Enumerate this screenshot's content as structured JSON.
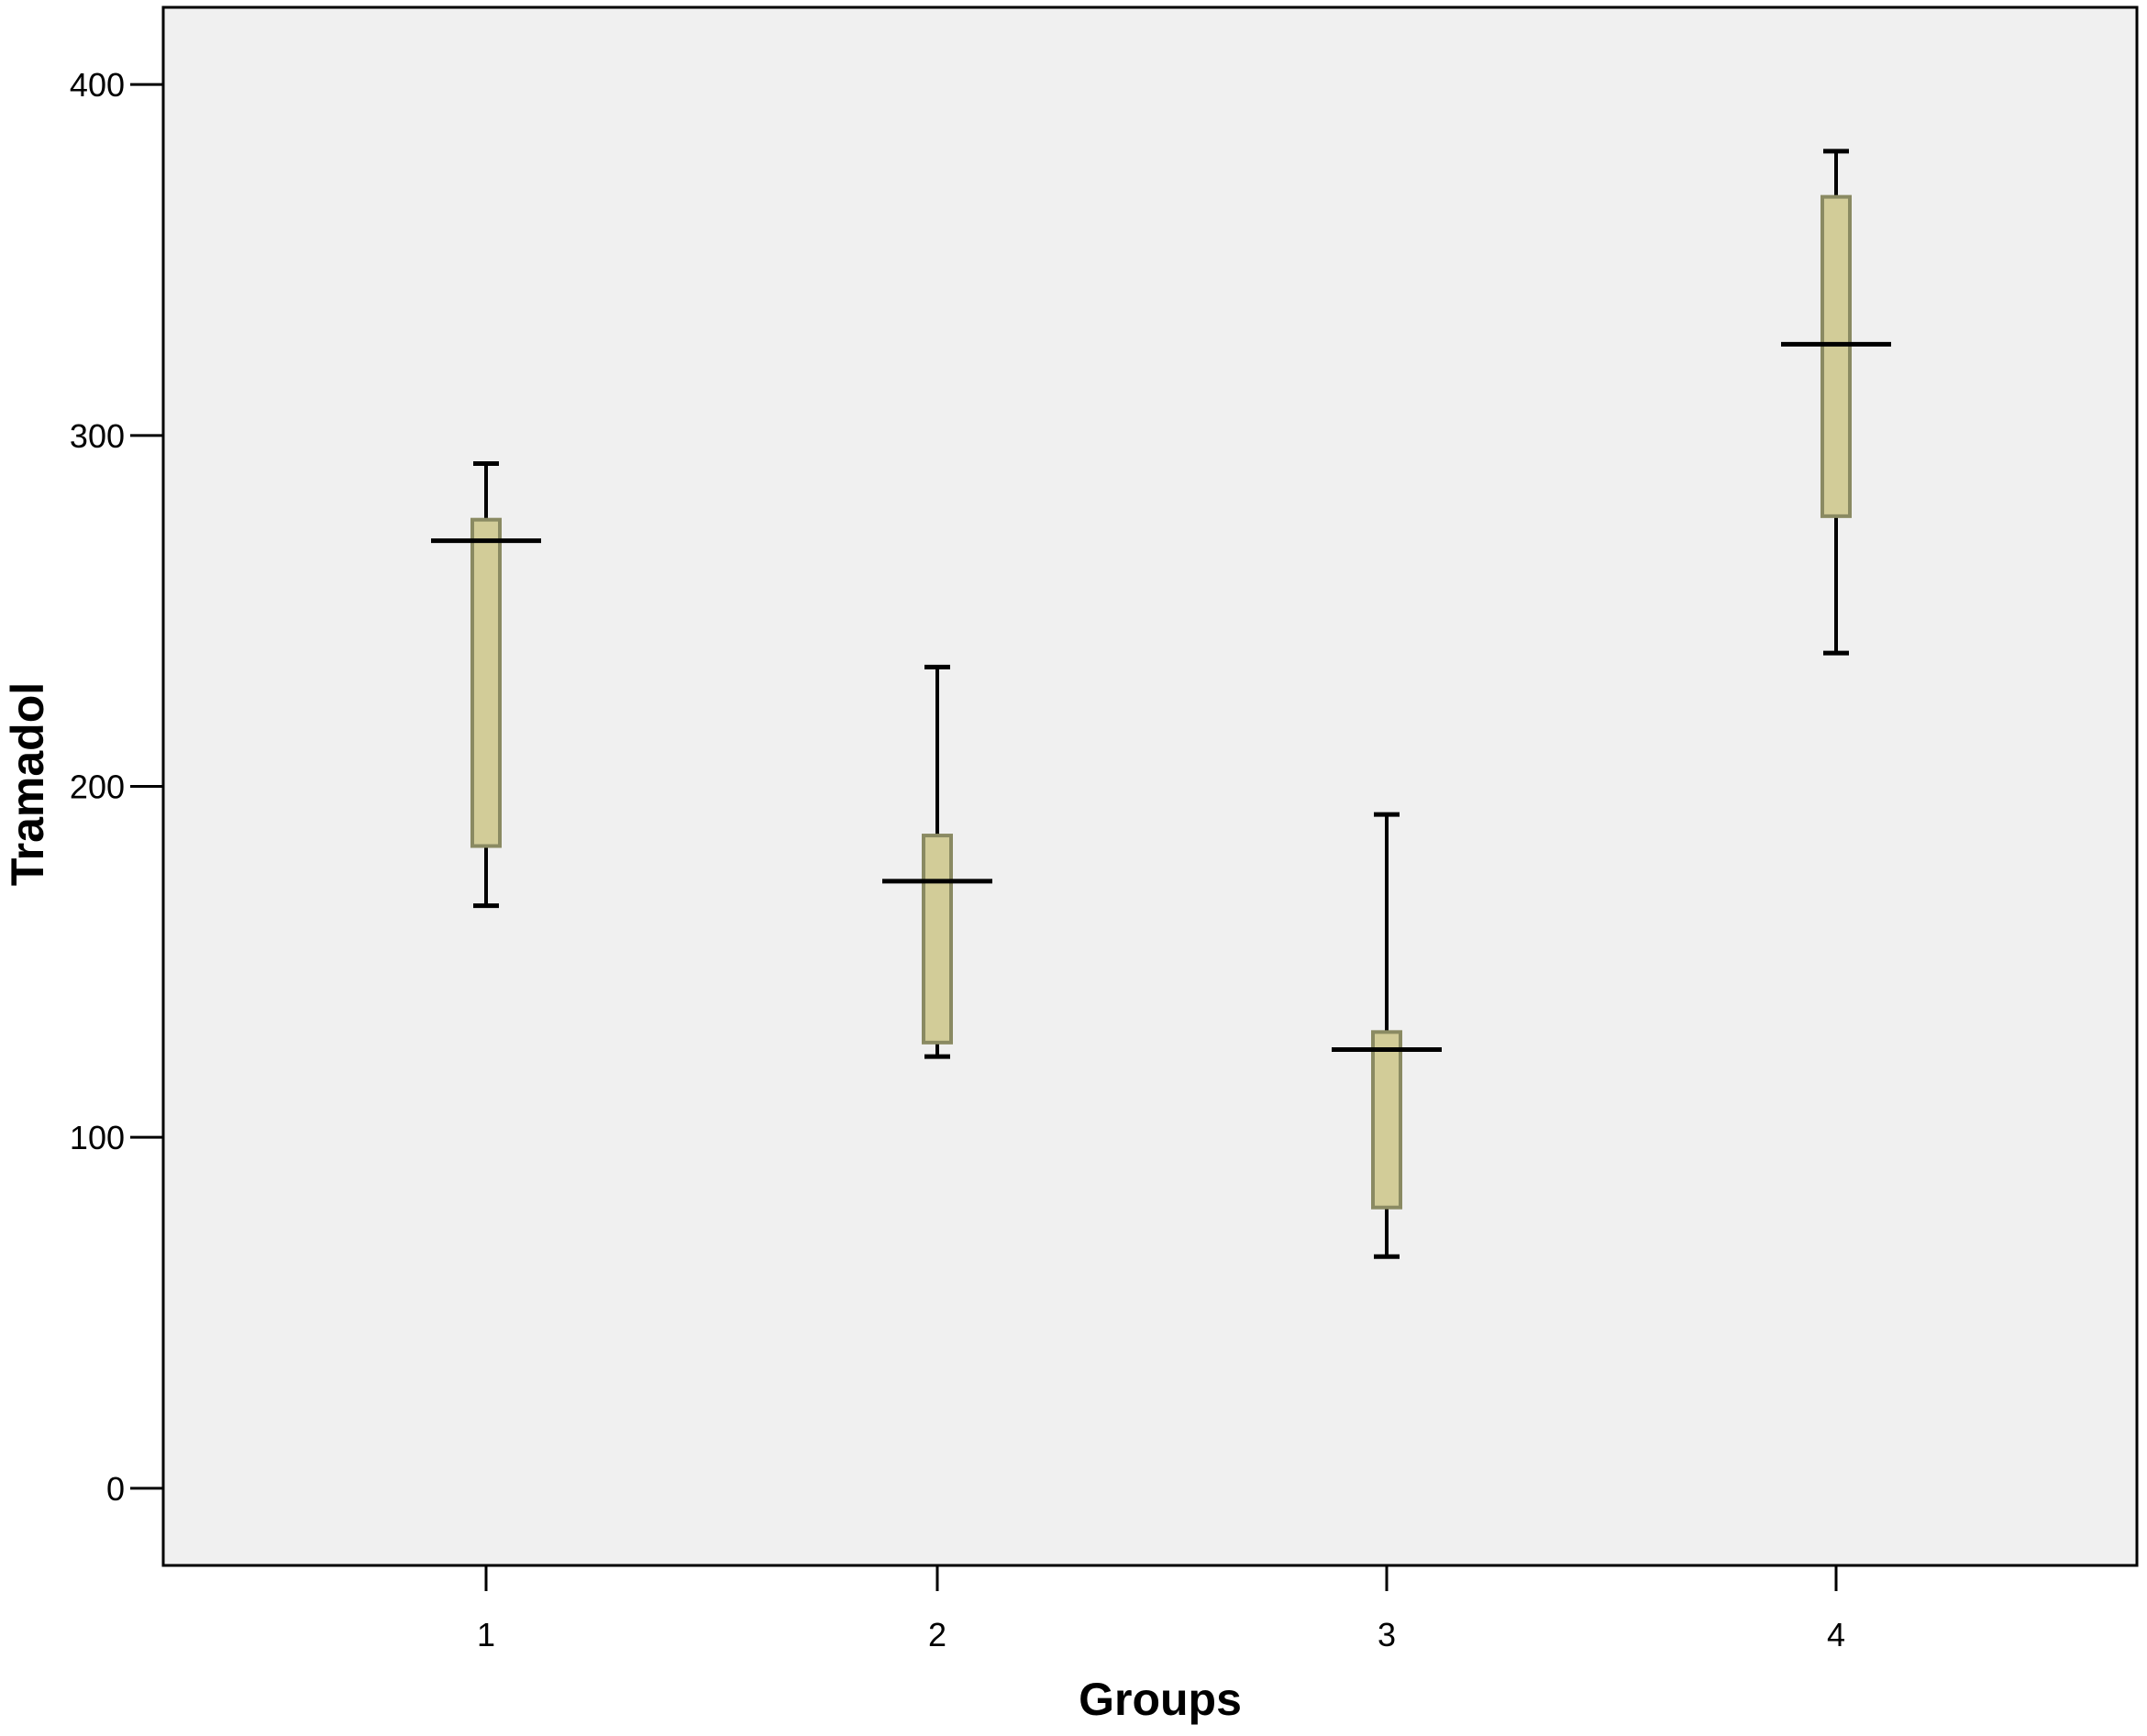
{
  "chart_data": {
    "type": "boxplot",
    "title": "",
    "xlabel": "Groups",
    "ylabel": "Tramadol",
    "ylim": [
      -22,
      422
    ],
    "yticks": [
      0,
      100,
      200,
      300,
      400
    ],
    "grid": false,
    "categories": [
      "1",
      "2",
      "3",
      "4"
    ],
    "boxes": [
      {
        "group": "1",
        "whisker_low": 166,
        "q1": 183,
        "median": 270,
        "q3": 276,
        "whisker_high": 292
      },
      {
        "group": "2",
        "whisker_low": 123,
        "q1": 127,
        "median": 173,
        "q3": 186,
        "whisker_high": 234
      },
      {
        "group": "3",
        "whisker_low": 66,
        "q1": 80,
        "median": 125,
        "q3": 130,
        "whisker_high": 192
      },
      {
        "group": "4",
        "whisker_low": 238,
        "q1": 277,
        "median": 326,
        "q3": 368,
        "whisker_high": 381
      }
    ],
    "colors": {
      "plot_background": "#f0f0f0",
      "box_fill": "#d2cc98",
      "box_stroke": "#8a8a62",
      "line": "#000000"
    }
  }
}
